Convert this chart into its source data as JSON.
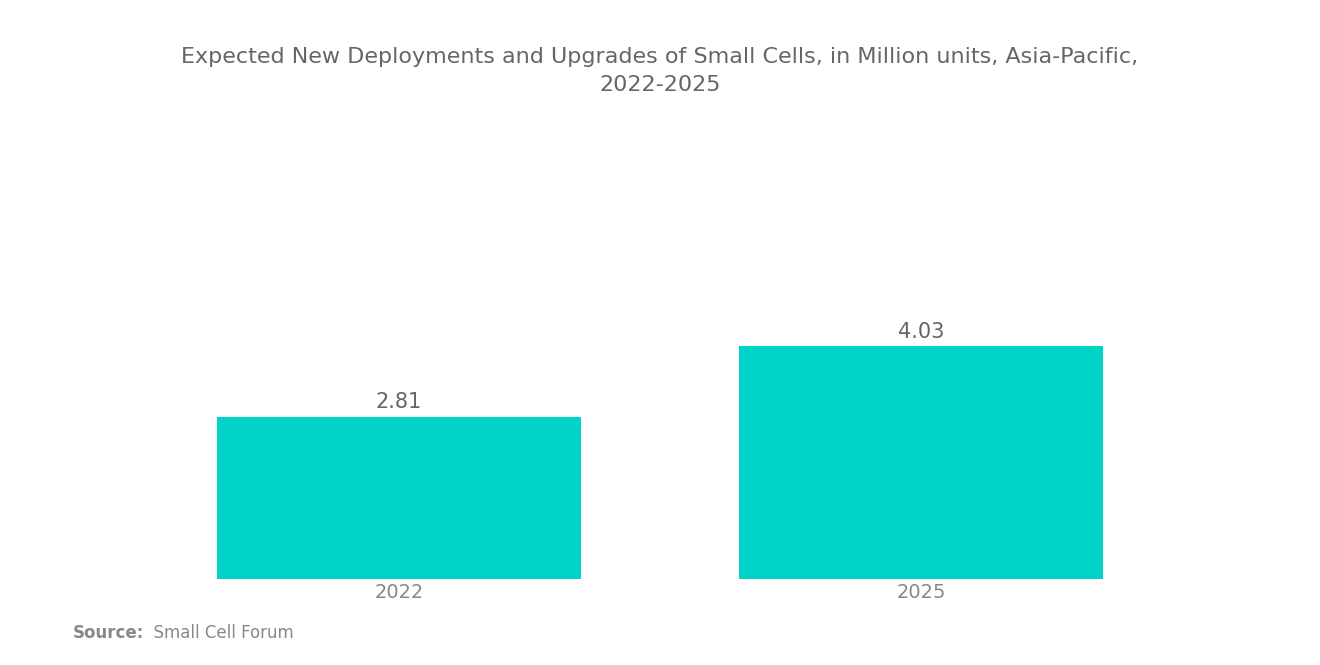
{
  "title": "Expected New Deployments and Upgrades of Small Cells, in Million units, Asia-Pacific,\n2022-2025",
  "categories": [
    "2022",
    "2025"
  ],
  "values": [
    2.81,
    4.03
  ],
  "bar_color": "#00D4C8",
  "bar_width": 0.32,
  "value_labels": [
    "2.81",
    "4.03"
  ],
  "value_label_color": "#666666",
  "value_label_fontsize": 15,
  "title_fontsize": 16,
  "title_color": "#666666",
  "tick_label_color": "#888888",
  "tick_label_fontsize": 14,
  "source_bold": "Source:",
  "source_detail": "  Small Cell Forum",
  "source_fontsize": 12,
  "source_color": "#888888",
  "background_color": "#ffffff",
  "ylim": [
    0,
    7.5
  ],
  "bar_positions": [
    0.27,
    0.73
  ],
  "xlim": [
    0.0,
    1.0
  ]
}
